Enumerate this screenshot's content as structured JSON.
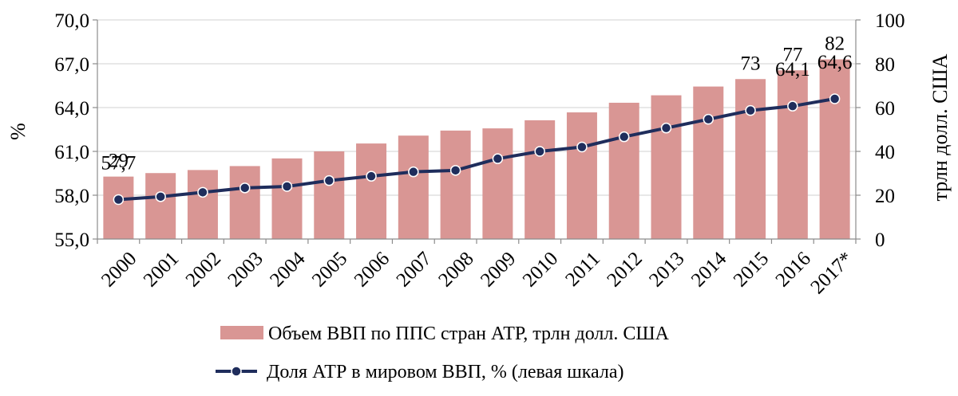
{
  "chart_data": {
    "type": "bar+line",
    "categories": [
      "2000",
      "2001",
      "2002",
      "2003",
      "2004",
      "2005",
      "2006",
      "2007",
      "2008",
      "2009",
      "2010",
      "2011",
      "2012",
      "2013",
      "2014",
      "2015",
      "2016",
      "2017*"
    ],
    "series": [
      {
        "name": "Объем ВВП по ППС стран АТР, трлн долл. США",
        "kind": "bar",
        "axis": "right",
        "color": "#d99694",
        "values": [
          28.5,
          30.1,
          31.5,
          33.3,
          36.8,
          40.0,
          43.6,
          47.2,
          49.5,
          50.5,
          54.2,
          57.8,
          62.2,
          65.6,
          69.6,
          73.0,
          77.0,
          82.0
        ],
        "data_labels": {
          "0": "29",
          "15": "73",
          "16": "77",
          "17": "82"
        }
      },
      {
        "name": "Доля АТР в мировом ВВП, % (левая шкала)",
        "kind": "line",
        "axis": "left",
        "color": "#1f2d5c",
        "values": [
          57.7,
          57.9,
          58.2,
          58.5,
          58.6,
          59.0,
          59.3,
          59.6,
          59.7,
          60.5,
          61.0,
          61.3,
          62.0,
          62.6,
          63.2,
          63.8,
          64.1,
          64.6
        ],
        "data_labels": {
          "0": "57,7",
          "16": "64,1",
          "17": "64,6"
        }
      }
    ],
    "y_left": {
      "label": "%",
      "range": [
        55.0,
        70.0
      ],
      "ticks": [
        55.0,
        58.0,
        61.0,
        64.0,
        67.0,
        70.0
      ],
      "tick_labels": [
        "55,0",
        "58,0",
        "61,0",
        "64,0",
        "67,0",
        "70,0"
      ]
    },
    "y_right": {
      "label": "трлн долл. США",
      "range": [
        0,
        100
      ],
      "ticks": [
        0,
        20,
        40,
        60,
        80,
        100
      ],
      "tick_labels": [
        "0",
        "20",
        "40",
        "60",
        "80",
        "100"
      ]
    },
    "grid": "horizontal",
    "legend": "bottom"
  }
}
